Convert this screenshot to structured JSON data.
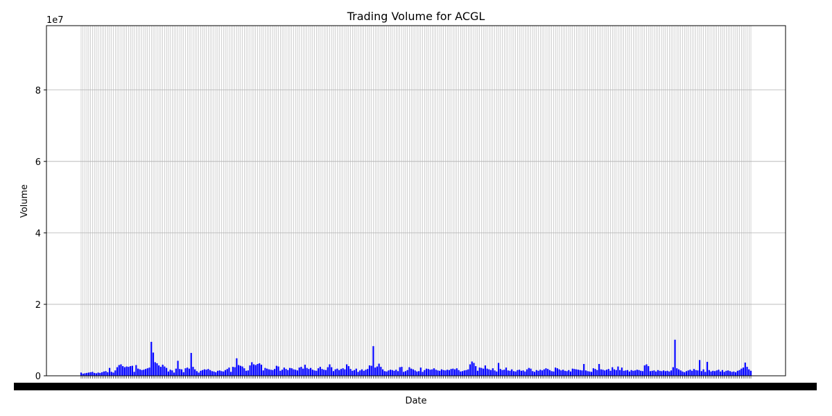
{
  "chart_data": {
    "type": "bar",
    "title": "Trading Volume for ACGL",
    "xlabel": "Date",
    "ylabel": "Volume",
    "y_scale_label": "1e7",
    "y_ticks": [
      0,
      20000000,
      40000000,
      60000000,
      80000000
    ],
    "y_tick_labels": [
      "0",
      "2",
      "4",
      "6",
      "8"
    ],
    "ylim": [
      0,
      98000000
    ],
    "x_tick_labels_note": "",
    "grid": true,
    "bar_color": "#0000ff",
    "grid_color": "#b0b0b0",
    "values": [
      900000,
      600000,
      700000,
      800000,
      900000,
      1000000,
      1100000,
      800000,
      700000,
      900000,
      800000,
      1000000,
      1200000,
      1300000,
      1000000,
      2200000,
      1100000,
      900000,
      1500000,
      2400000,
      3000000,
      3200000,
      2700000,
      2400000,
      2600000,
      2500000,
      2700000,
      2800000,
      1100000,
      3000000,
      2000000,
      1800000,
      1600000,
      1700000,
      1900000,
      2100000,
      2300000,
      9500000,
      6500000,
      3800000,
      3500000,
      2900000,
      2500000,
      3100000,
      2600000,
      2200000,
      1200000,
      1700000,
      1500000,
      900000,
      2000000,
      4200000,
      1900000,
      1800000,
      1000000,
      2100000,
      2300000,
      2000000,
      6400000,
      2500000,
      1800000,
      1300000,
      900000,
      1400000,
      1600000,
      1800000,
      1700000,
      1900000,
      1600000,
      1300000,
      1200000,
      1000000,
      1400000,
      1500000,
      1300000,
      1200000,
      1600000,
      1900000,
      2300000,
      1100000,
      2500000,
      2400000,
      4900000,
      3000000,
      2800000,
      2600000,
      2100000,
      1400000,
      1500000,
      2900000,
      3800000,
      3200000,
      3000000,
      3300000,
      3500000,
      3100000,
      1500000,
      2200000,
      2000000,
      1800000,
      1700000,
      1600000,
      1900000,
      2800000,
      2600000,
      1400000,
      1700000,
      2300000,
      1900000,
      1600000,
      2200000,
      2100000,
      1800000,
      1700000,
      1500000,
      2300000,
      2500000,
      2000000,
      3100000,
      2200000,
      1900000,
      2200000,
      1700000,
      1500000,
      1400000,
      2100000,
      2500000,
      1900000,
      1700000,
      1600000,
      2400000,
      3200000,
      2400000,
      1300000,
      1800000,
      2000000,
      1600000,
      1900000,
      2100000,
      1800000,
      3200000,
      2700000,
      1900000,
      1400000,
      1600000,
      2000000,
      1100000,
      1500000,
      1800000,
      1400000,
      1700000,
      1900000,
      2900000,
      2800000,
      8300000,
      2300000,
      2600000,
      3400000,
      2500000,
      1800000,
      1300000,
      1200000,
      1500000,
      1700000,
      1600000,
      1400000,
      1700000,
      1300000,
      2400000,
      2500000,
      1100000,
      1300000,
      1600000,
      2400000,
      2000000,
      1800000,
      1500000,
      1200000,
      1300000,
      2300000,
      1100000,
      1600000,
      2000000,
      1900000,
      1700000,
      1800000,
      2100000,
      1700000,
      1500000,
      1400000,
      1800000,
      1600000,
      1500000,
      1700000,
      1600000,
      1900000,
      2000000,
      1800000,
      2100000,
      1600000,
      1200000,
      1300000,
      1500000,
      1600000,
      1800000,
      3200000,
      4000000,
      3600000,
      2700000,
      1400000,
      2300000,
      2200000,
      2000000,
      2900000,
      2000000,
      1800000,
      1600000,
      2100000,
      1500000,
      1200000,
      3600000,
      1900000,
      1600000,
      1700000,
      2300000,
      1500000,
      1400000,
      1800000,
      1300000,
      1200000,
      1600000,
      1700000,
      1400000,
      1500000,
      1200000,
      1800000,
      2200000,
      2000000,
      1300000,
      1100000,
      1600000,
      1400000,
      1700000,
      1500000,
      1800000,
      2100000,
      1900000,
      1600000,
      1300000,
      1200000,
      2300000,
      2100000,
      1800000,
      1500000,
      1700000,
      1400000,
      1300000,
      1600000,
      1200000,
      2000000,
      1900000,
      1800000,
      1700000,
      1600000,
      1500000,
      3300000,
      1500000,
      1300000,
      1200000,
      1100000,
      2100000,
      1900000,
      1600000,
      3300000,
      1800000,
      1700000,
      1500000,
      1700000,
      1900000,
      1400000,
      2400000,
      1800000,
      1600000,
      2600000,
      1600000,
      2300000,
      1400000,
      1500000,
      1600000,
      1200000,
      1600000,
      1400000,
      1500000,
      1700000,
      1600000,
      1400000,
      1300000,
      2900000,
      3200000,
      2700000,
      1300000,
      1400000,
      1500000,
      1200000,
      1600000,
      1400000,
      1300000,
      1500000,
      1300000,
      1400000,
      1200000,
      1500000,
      2400000,
      10100000,
      2100000,
      1800000,
      1500000,
      1200000,
      1000000,
      1300000,
      1500000,
      1700000,
      1400000,
      1900000,
      1600000,
      1500000,
      4400000,
      1300000,
      1800000,
      1100000,
      3900000,
      1600000,
      1200000,
      1400000,
      1300000,
      1500000,
      1700000,
      1200000,
      1600000,
      1100000,
      1400000,
      1500000,
      1300000,
      1100000,
      1200000,
      1000000,
      1400000,
      1600000,
      2000000,
      2300000,
      3700000,
      2500000,
      1800000,
      1400000
    ]
  }
}
